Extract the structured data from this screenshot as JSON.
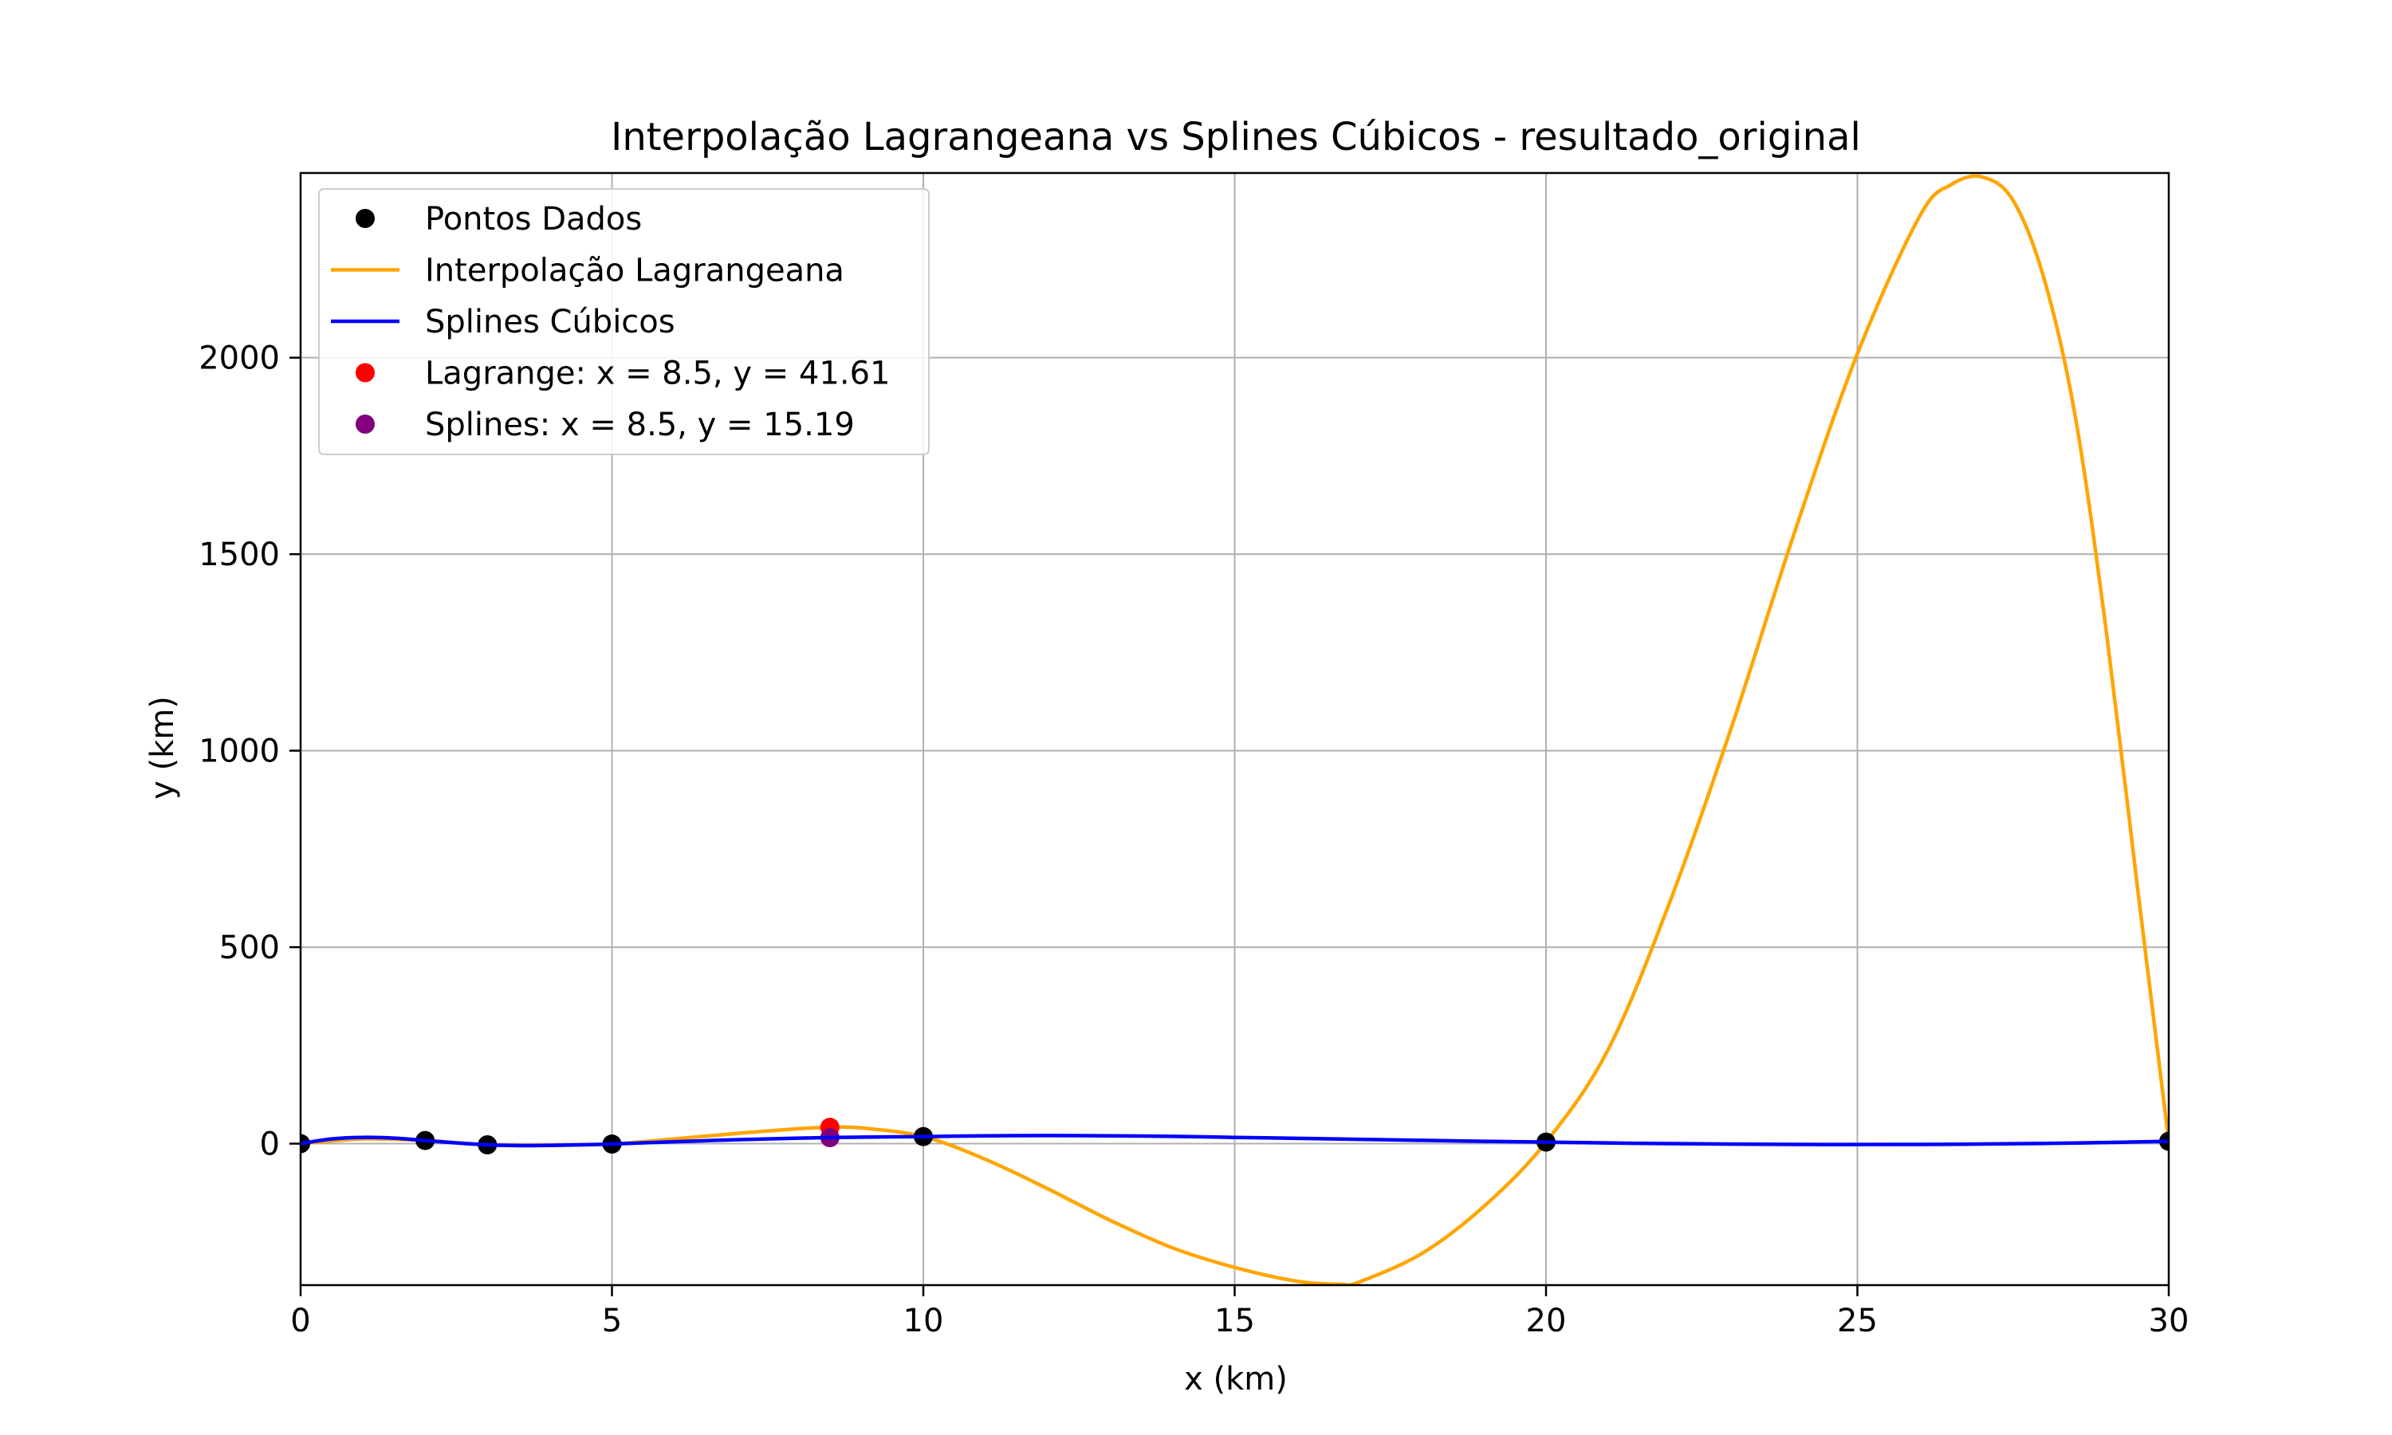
{
  "chart_data": {
    "type": "line",
    "title": "Interpolação Lagrangeana vs Splines Cúbicos - resultado_original",
    "xlabel": "x (km)",
    "ylabel": "y (km)",
    "xlim": [
      0,
      30
    ],
    "ylim": [
      -360,
      2470
    ],
    "xticks": [
      0,
      5,
      10,
      15,
      20,
      25,
      30
    ],
    "yticks": [
      0,
      500,
      1000,
      1500,
      2000
    ],
    "grid": true,
    "legend_position": "top-left",
    "data_points": {
      "name": "Pontos Dados",
      "color": "#000000",
      "x": [
        0,
        2,
        3,
        5,
        10,
        20,
        30
      ],
      "y": [
        0,
        8,
        -3,
        -1,
        18,
        4,
        6
      ]
    },
    "lagrange_curve": {
      "name": "Interpolação Lagrangeana",
      "color": "#FFA500",
      "x": [
        0,
        1,
        2,
        3,
        4,
        5,
        6,
        7,
        8,
        8.5,
        9,
        10,
        11,
        12,
        13,
        14,
        15,
        16,
        16.7,
        17,
        18,
        19,
        20,
        21,
        22,
        23,
        24,
        25,
        26,
        26.5,
        27,
        27.5,
        28,
        28.5,
        29,
        29.5,
        30
      ],
      "y": [
        0,
        12,
        8,
        -3,
        -4,
        -1,
        12,
        26,
        38,
        41.61,
        40,
        18,
        -40,
        -115,
        -195,
        -265,
        -315,
        -350,
        -358,
        -352,
        -280,
        -160,
        4,
        240,
        620,
        1070,
        1560,
        2010,
        2360,
        2440,
        2460,
        2400,
        2200,
        1850,
        1300,
        650,
        6
      ]
    },
    "spline_curve": {
      "name": "Splines Cúbicos",
      "color": "#0000FF",
      "x": [
        0,
        0.5,
        1,
        1.5,
        2,
        2.5,
        3,
        3.5,
        4,
        4.5,
        5,
        6,
        7,
        8,
        9,
        10,
        11,
        12,
        13,
        14,
        15,
        16,
        17,
        18,
        19,
        20,
        22,
        24,
        26,
        27,
        28,
        29,
        30
      ],
      "y": [
        0,
        12,
        16,
        14,
        8,
        2,
        -3,
        -5,
        -4.5,
        -3,
        -1,
        5,
        10,
        14,
        16.5,
        18,
        20,
        20.5,
        20,
        18.5,
        16,
        13.5,
        11,
        8.5,
        6,
        4,
        0,
        -2,
        -2,
        -1,
        0.5,
        3,
        6
      ]
    },
    "markers": [
      {
        "name": "Lagrange: x = 8.5, y = 41.61",
        "x": 8.5,
        "y": 41.61,
        "color": "#FF0000"
      },
      {
        "name": "Splines: x = 8.5, y = 15.19",
        "x": 8.5,
        "y": 15.19,
        "color": "#800080"
      }
    ]
  }
}
